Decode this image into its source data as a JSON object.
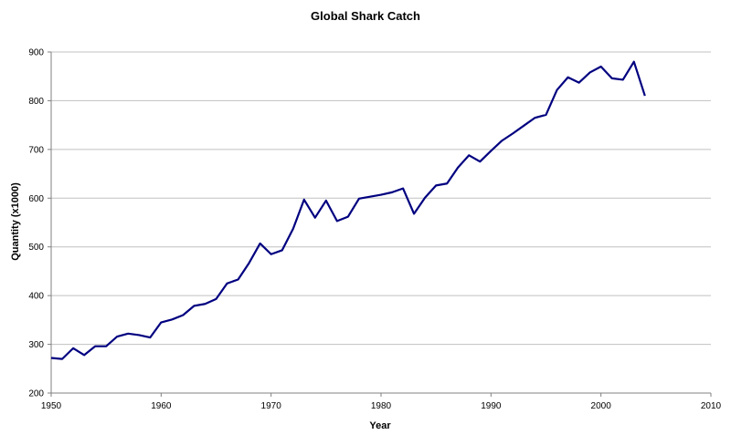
{
  "chart_data": {
    "type": "line",
    "title": "Global Shark Catch",
    "xlabel": "Year",
    "ylabel": "Quantity (x1000)",
    "xlim": [
      1950,
      2010
    ],
    "ylim": [
      200,
      900
    ],
    "x_ticks": [
      1950,
      1960,
      1970,
      1980,
      1990,
      2000,
      2010
    ],
    "y_ticks": [
      200,
      300,
      400,
      500,
      600,
      700,
      800,
      900
    ],
    "grid": "horizontal",
    "legend": "none",
    "series": [
      {
        "color": "#000080",
        "x": [
          1950,
          1951,
          1952,
          1953,
          1954,
          1955,
          1956,
          1957,
          1958,
          1959,
          1960,
          1961,
          1962,
          1963,
          1964,
          1965,
          1966,
          1967,
          1968,
          1969,
          1970,
          1971,
          1972,
          1973,
          1974,
          1975,
          1976,
          1977,
          1978,
          1979,
          1980,
          1981,
          1982,
          1983,
          1984,
          1985,
          1986,
          1987,
          1988,
          1989,
          1990,
          1991,
          1992,
          1993,
          1994,
          1995,
          1996,
          1997,
          1998,
          1999,
          2000,
          2001,
          2002,
          2003,
          2004
        ],
        "values": [
          272,
          270,
          292,
          278,
          296,
          296,
          316,
          322,
          319,
          314,
          345,
          351,
          360,
          379,
          383,
          393,
          425,
          433,
          467,
          507,
          485,
          493,
          537,
          597,
          560,
          595,
          553,
          562,
          599,
          603,
          607,
          612,
          620,
          568,
          601,
          626,
          630,
          663,
          688,
          675,
          697,
          718,
          733,
          749,
          765,
          771,
          822,
          848,
          837,
          858,
          870,
          846,
          843,
          880,
          810
        ]
      }
    ]
  }
}
